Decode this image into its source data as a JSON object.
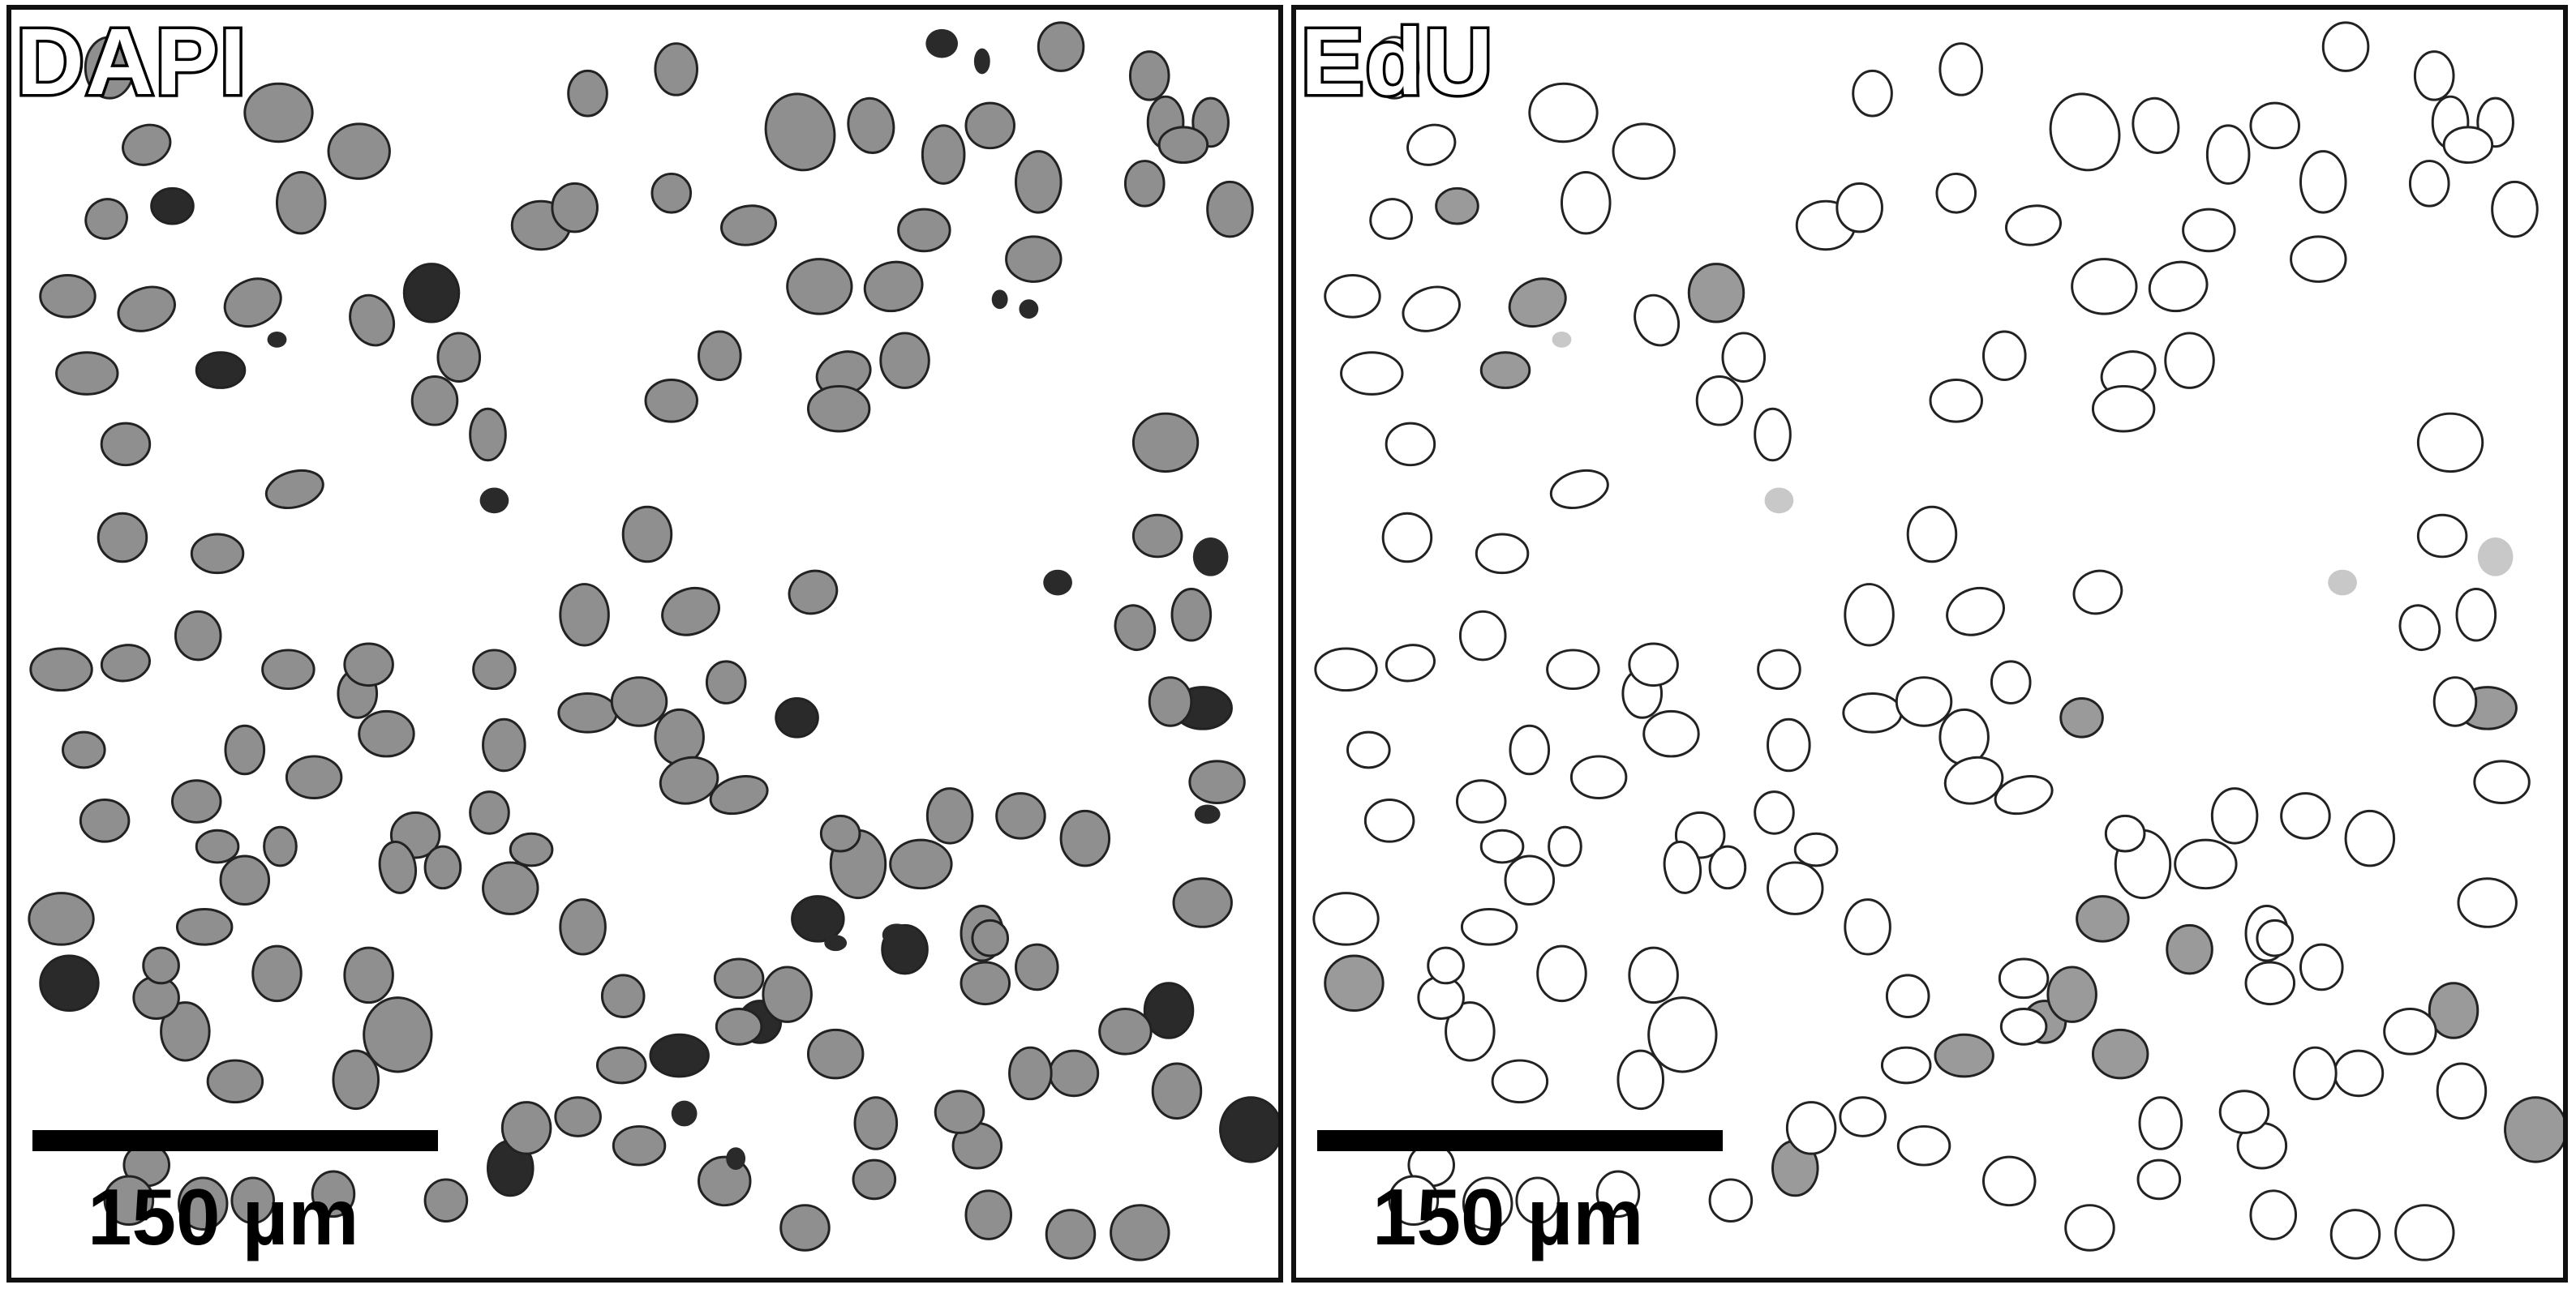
{
  "panels": [
    {
      "label": "DAPI",
      "scale_text": "150 µm"
    },
    {
      "label": "EdU",
      "scale_text": "150 µm"
    }
  ],
  "colors": {
    "border": "#111111",
    "outline": "#222222",
    "dapi_fill": "#8f8f8f",
    "dapi_dense": "#2a2a2a",
    "edu_positive": "#9a9a9a",
    "background": "#ffffff"
  }
}
